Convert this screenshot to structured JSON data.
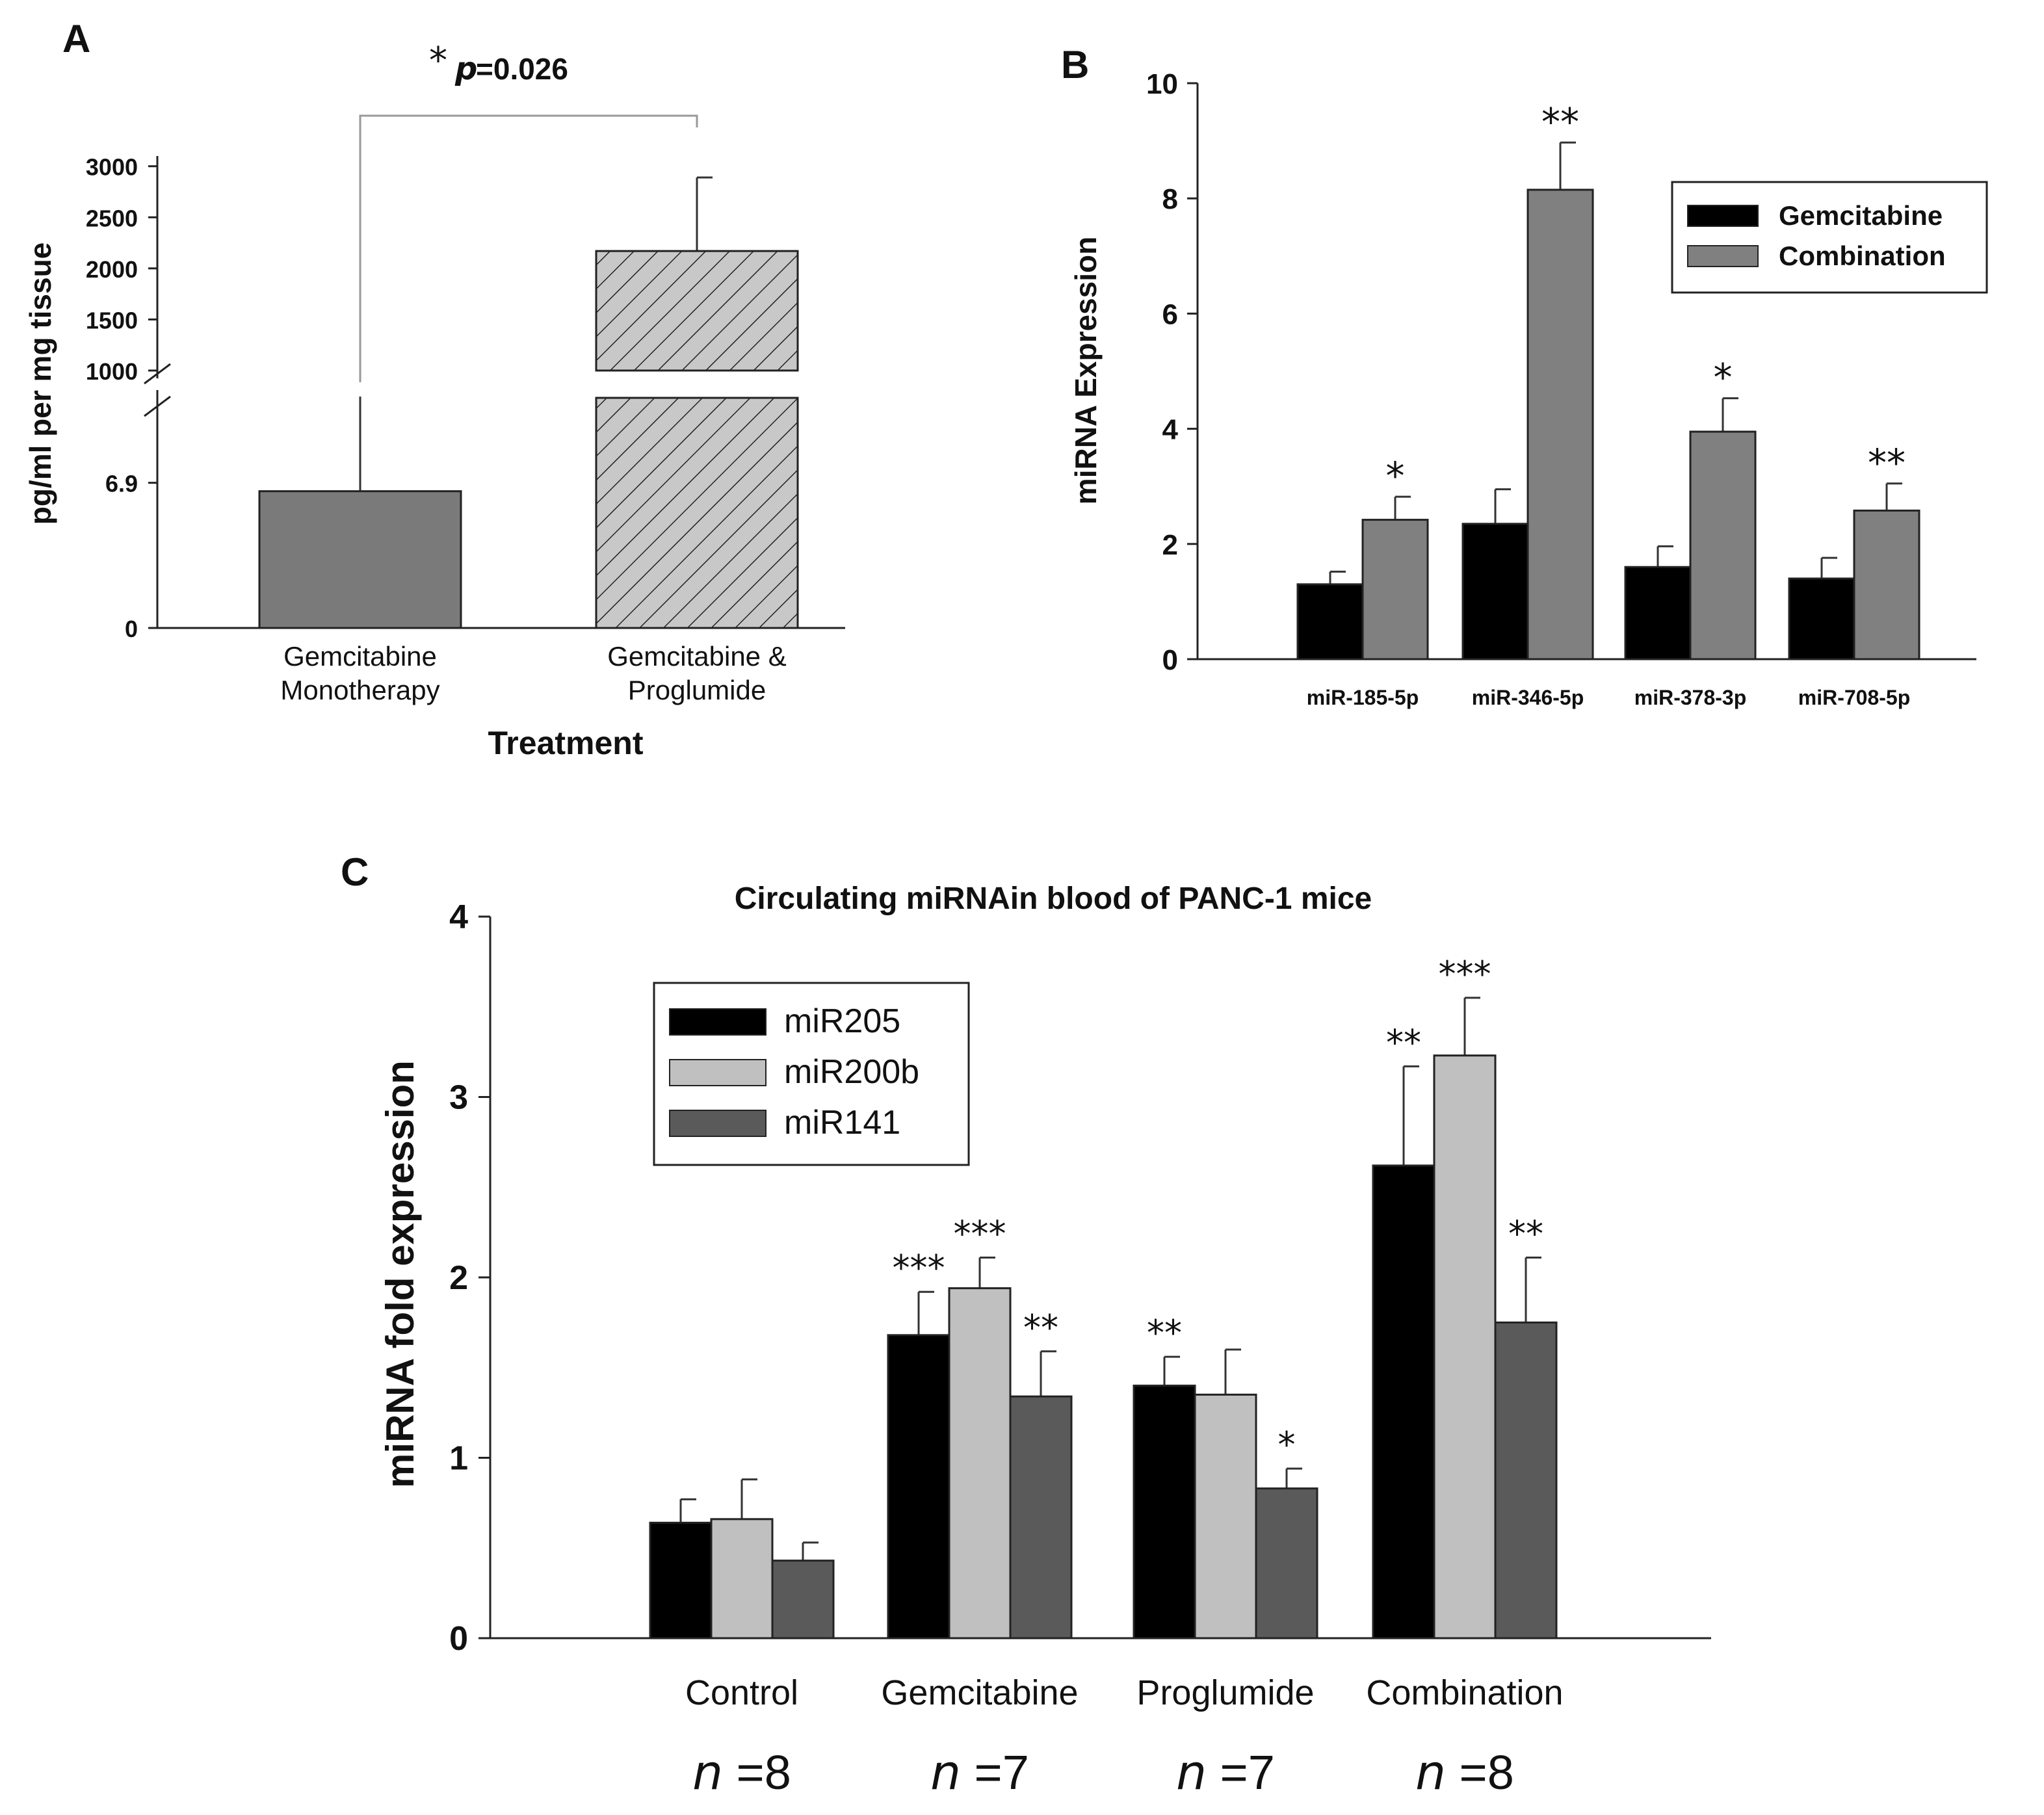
{
  "chart_data": [
    {
      "panel": "A",
      "type": "bar",
      "xlabel": "Treatment",
      "ylabel": "pg/ml per mg tissue",
      "categories": [
        [
          "Gemcitabine",
          "Monotherapy"
        ],
        [
          "Gemcitabine &",
          "Proglumide"
        ]
      ],
      "values": [
        6.5,
        2170
      ],
      "error": [
        null,
        720
      ],
      "lower_segment": {
        "ylim": [
          0,
          11
        ],
        "ticks": [
          "0",
          "6.9"
        ]
      },
      "upper_segment": {
        "ylim": [
          1000,
          3100
        ],
        "ticks": [
          "1000",
          "1500",
          "2000",
          "2500",
          "3000"
        ]
      },
      "axis_break": true,
      "significance": {
        "star": "*",
        "p_label": "p",
        "p_value": "=0.026"
      },
      "colors": [
        "#7a7a7a",
        "#c8c8c8"
      ],
      "hatched": [
        false,
        true
      ]
    },
    {
      "panel": "B",
      "type": "bar",
      "ylabel": "miRNA Expression",
      "ylim": [
        0,
        10
      ],
      "yticks": [
        "0",
        "2",
        "4",
        "6",
        "8",
        "10"
      ],
      "categories": [
        "miR-185-5p",
        "miR-346-5p",
        "miR-378-3p",
        "miR-708-5p"
      ],
      "series": [
        {
          "name": "Gemcitabine",
          "values": [
            1.3,
            2.35,
            1.6,
            1.4
          ],
          "errors": [
            0.22,
            0.6,
            0.36,
            0.36
          ],
          "color": "#000000"
        },
        {
          "name": "Combination",
          "values": [
            2.42,
            8.15,
            3.95,
            2.58
          ],
          "errors": [
            0.4,
            0.82,
            0.58,
            0.47
          ],
          "color": "#808080"
        }
      ],
      "stars": [
        "*",
        "**",
        "*",
        "**"
      ],
      "legend": "top-right"
    },
    {
      "panel": "C",
      "type": "bar",
      "title": "Circulating miRNAin blood of PANC-1 mice",
      "ylabel": "miRNA fold expression",
      "ylim": [
        0,
        4
      ],
      "yticks": [
        "0",
        "1",
        "2",
        "3",
        "4"
      ],
      "categories": [
        "Control",
        "Gemcitabine",
        "Proglumide",
        "Combination"
      ],
      "n_labels": [
        {
          "n": "n",
          "value": " =8"
        },
        {
          "n": "n",
          "value": " =7"
        },
        {
          "n": "n",
          "value": " =7"
        },
        {
          "n": "n",
          "value": " =8"
        }
      ],
      "series": [
        {
          "name": "miR205",
          "values": [
            0.64,
            1.68,
            1.4,
            2.62
          ],
          "errors": [
            0.13,
            0.24,
            0.16,
            0.55
          ],
          "color": "#000000",
          "stars": [
            "",
            "***",
            "**",
            "**"
          ]
        },
        {
          "name": "miR200b",
          "values": [
            0.66,
            1.94,
            1.35,
            3.23
          ],
          "errors": [
            0.22,
            0.17,
            0.25,
            0.32
          ],
          "color": "#c0c0c0",
          "stars": [
            "",
            "***",
            "",
            "***"
          ]
        },
        {
          "name": "miR141",
          "values": [
            0.43,
            1.34,
            0.83,
            1.75
          ],
          "errors": [
            0.1,
            0.25,
            0.11,
            0.36
          ],
          "color": "#5a5a5a",
          "stars": [
            "",
            "**",
            "*",
            "**"
          ]
        }
      ],
      "legend": "top-left"
    }
  ]
}
